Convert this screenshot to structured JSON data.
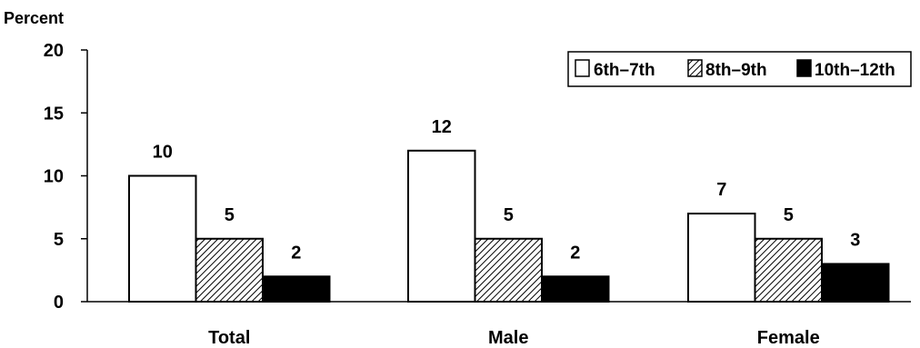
{
  "chart_data": {
    "type": "bar",
    "ylabel": "Percent",
    "ylim": [
      0,
      20
    ],
    "yticks": [
      0,
      5,
      10,
      15,
      20
    ],
    "categories": [
      "Total",
      "Male",
      "Female"
    ],
    "series": [
      {
        "name": "6th–7th",
        "values": [
          10,
          12,
          7
        ],
        "pattern": "white"
      },
      {
        "name": "8th–9th",
        "values": [
          5,
          5,
          5
        ],
        "pattern": "hatched"
      },
      {
        "name": "10th–12th",
        "values": [
          2,
          2,
          3
        ],
        "pattern": "black"
      }
    ],
    "data_labels": true,
    "legend_position": "top-right",
    "grid": false
  }
}
